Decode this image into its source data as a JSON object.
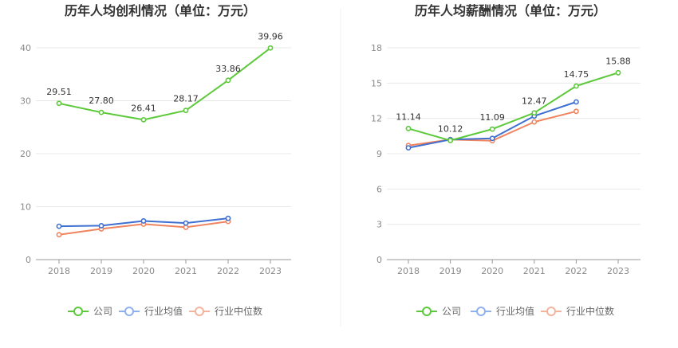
{
  "chart_data": [
    {
      "type": "line",
      "title": "历年人均创利情况（单位：万元）",
      "xlabel": "",
      "ylabel": "",
      "categories": [
        "2018",
        "2019",
        "2020",
        "2021",
        "2022",
        "2023"
      ],
      "ylim": [
        0,
        40
      ],
      "yticks": [
        0,
        10,
        20,
        30,
        40
      ],
      "series": [
        {
          "name": "公司",
          "values": [
            29.51,
            27.8,
            26.41,
            28.17,
            33.86,
            39.96
          ],
          "labels": [
            "29.51",
            "27.80",
            "26.41",
            "28.17",
            "33.86",
            "39.96"
          ],
          "color": "#5cc93a"
        },
        {
          "name": "行业均值",
          "values": [
            6.3,
            6.4,
            7.3,
            6.9,
            7.8,
            null
          ],
          "color": "#3f6fd1"
        },
        {
          "name": "行业中位数",
          "values": [
            4.7,
            5.8,
            6.7,
            6.1,
            7.2,
            null
          ],
          "color": "#f0845f"
        }
      ],
      "grid": true,
      "legend": "bottom"
    },
    {
      "type": "line",
      "title": "历年人均薪酬情况（单位：万元）",
      "xlabel": "",
      "ylabel": "",
      "categories": [
        "2018",
        "2019",
        "2020",
        "2021",
        "2022",
        "2023"
      ],
      "ylim": [
        0,
        18
      ],
      "yticks": [
        0,
        3,
        6,
        9,
        12,
        15,
        18
      ],
      "series": [
        {
          "name": "公司",
          "values": [
            11.14,
            10.12,
            11.09,
            12.47,
            14.75,
            15.88
          ],
          "labels": [
            "11.14",
            "10.12",
            "11.09",
            "12.47",
            "14.75",
            "15.88"
          ],
          "color": "#5cc93a"
        },
        {
          "name": "行业均值",
          "values": [
            9.5,
            10.2,
            10.3,
            12.2,
            13.4,
            null
          ],
          "color": "#3f6fd1"
        },
        {
          "name": "行业中位数",
          "values": [
            9.7,
            10.2,
            10.1,
            11.7,
            12.6,
            null
          ],
          "color": "#f0845f"
        }
      ],
      "grid": true,
      "legend": "bottom"
    }
  ],
  "legend_colors": [
    "#5cc93a",
    "#8fb0ee",
    "#f4b39d"
  ]
}
